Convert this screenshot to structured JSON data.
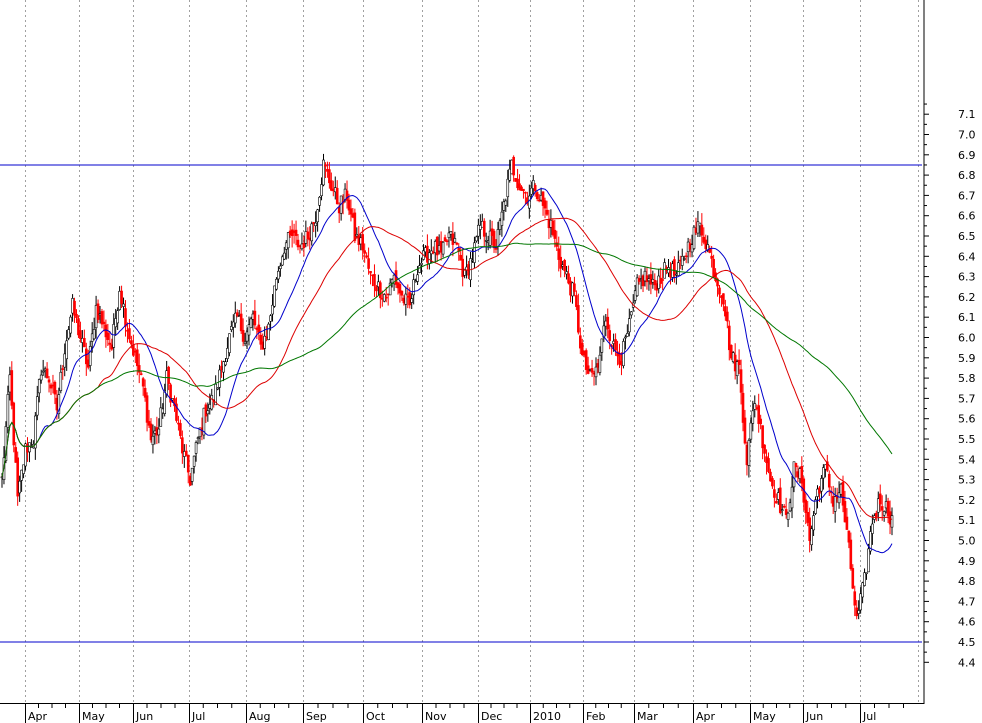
{
  "chart_data": {
    "type": "candlestick",
    "title": "",
    "xlabel": "",
    "ylabel": "",
    "y_axis_side": "right",
    "ylim": [
      4.3,
      7.2
    ],
    "y_ticks": [
      4.4,
      4.5,
      4.6,
      4.7,
      4.8,
      4.9,
      5.0,
      5.1,
      5.2,
      5.3,
      5.4,
      5.5,
      5.6,
      5.7,
      5.8,
      5.9,
      6.0,
      6.1,
      6.2,
      6.3,
      6.4,
      6.5,
      6.6,
      6.7,
      6.8,
      6.9,
      7.0,
      7.1
    ],
    "x_labels": [
      "Apr",
      "May",
      "Jun",
      "Jul",
      "Aug",
      "Sep",
      "Oct",
      "Nov",
      "Dec",
      "2010",
      "Feb",
      "Mar",
      "Apr",
      "May",
      "Jun",
      "Jul"
    ],
    "grid": {
      "vertical": true,
      "horizontal": false,
      "style": "dotted"
    },
    "up_color": "#000000",
    "down_color": "#ff0000",
    "horizontal_lines": [
      {
        "value": 6.85,
        "color": "#0000cc"
      },
      {
        "value": 4.5,
        "color": "#0000cc"
      }
    ],
    "close_anchors": [
      [
        0,
        5.3
      ],
      [
        4,
        5.8
      ],
      [
        8,
        5.2
      ],
      [
        12,
        5.45
      ],
      [
        16,
        5.5
      ],
      [
        20,
        5.85
      ],
      [
        24,
        5.8
      ],
      [
        28,
        5.65
      ],
      [
        32,
        5.95
      ],
      [
        36,
        6.15
      ],
      [
        40,
        6.0
      ],
      [
        44,
        5.85
      ],
      [
        48,
        6.15
      ],
      [
        52,
        6.05
      ],
      [
        56,
        5.95
      ],
      [
        60,
        6.25
      ],
      [
        64,
        6.05
      ],
      [
        68,
        5.9
      ],
      [
        72,
        5.75
      ],
      [
        76,
        5.5
      ],
      [
        80,
        5.55
      ],
      [
        84,
        5.8
      ],
      [
        88,
        5.65
      ],
      [
        92,
        5.45
      ],
      [
        96,
        5.3
      ],
      [
        100,
        5.5
      ],
      [
        104,
        5.65
      ],
      [
        108,
        5.7
      ],
      [
        112,
        5.85
      ],
      [
        116,
        6.0
      ],
      [
        120,
        6.1
      ],
      [
        124,
        6.0
      ],
      [
        128,
        6.1
      ],
      [
        132,
        5.95
      ],
      [
        136,
        6.05
      ],
      [
        140,
        6.3
      ],
      [
        144,
        6.45
      ],
      [
        148,
        6.5
      ],
      [
        152,
        6.45
      ],
      [
        156,
        6.5
      ],
      [
        160,
        6.6
      ],
      [
        164,
        6.85
      ],
      [
        168,
        6.75
      ],
      [
        172,
        6.65
      ],
      [
        176,
        6.7
      ],
      [
        180,
        6.5
      ],
      [
        184,
        6.45
      ],
      [
        188,
        6.3
      ],
      [
        192,
        6.25
      ],
      [
        196,
        6.2
      ],
      [
        200,
        6.3
      ],
      [
        204,
        6.2
      ],
      [
        208,
        6.15
      ],
      [
        212,
        6.35
      ],
      [
        216,
        6.4
      ],
      [
        220,
        6.45
      ],
      [
        224,
        6.4
      ],
      [
        228,
        6.5
      ],
      [
        232,
        6.45
      ],
      [
        236,
        6.3
      ],
      [
        240,
        6.4
      ],
      [
        244,
        6.55
      ],
      [
        248,
        6.5
      ],
      [
        252,
        6.45
      ],
      [
        256,
        6.65
      ],
      [
        260,
        6.85
      ],
      [
        264,
        6.75
      ],
      [
        268,
        6.7
      ],
      [
        272,
        6.75
      ],
      [
        276,
        6.65
      ],
      [
        280,
        6.55
      ],
      [
        284,
        6.4
      ],
      [
        288,
        6.3
      ],
      [
        292,
        6.2
      ],
      [
        296,
        5.9
      ],
      [
        300,
        5.8
      ],
      [
        304,
        5.85
      ],
      [
        308,
        6.1
      ],
      [
        312,
        5.95
      ],
      [
        316,
        5.9
      ],
      [
        320,
        6.05
      ],
      [
        324,
        6.25
      ],
      [
        328,
        6.3
      ],
      [
        332,
        6.25
      ],
      [
        336,
        6.3
      ],
      [
        340,
        6.35
      ],
      [
        344,
        6.3
      ],
      [
        348,
        6.4
      ],
      [
        352,
        6.5
      ],
      [
        356,
        6.55
      ],
      [
        360,
        6.45
      ],
      [
        364,
        6.3
      ],
      [
        368,
        6.2
      ],
      [
        372,
        5.9
      ],
      [
        376,
        5.85
      ],
      [
        380,
        5.4
      ],
      [
        384,
        5.7
      ],
      [
        388,
        5.5
      ],
      [
        392,
        5.3
      ],
      [
        396,
        5.2
      ],
      [
        400,
        5.1
      ],
      [
        404,
        5.35
      ],
      [
        408,
        5.3
      ],
      [
        412,
        5.0
      ],
      [
        416,
        5.25
      ],
      [
        420,
        5.35
      ],
      [
        424,
        5.2
      ],
      [
        428,
        5.25
      ],
      [
        432,
        4.95
      ],
      [
        436,
        4.6
      ],
      [
        440,
        4.8
      ],
      [
        444,
        5.1
      ],
      [
        448,
        5.2
      ],
      [
        452,
        5.15
      ],
      [
        454,
        5.1
      ]
    ],
    "series": [
      {
        "name": "",
        "kind": "moving average",
        "color": "#0000cc",
        "period": 20
      },
      {
        "name": "",
        "kind": "moving average",
        "color": "#dd0000",
        "period": 50
      },
      {
        "name": "",
        "kind": "moving average",
        "color": "#007700",
        "period": 100
      }
    ]
  }
}
